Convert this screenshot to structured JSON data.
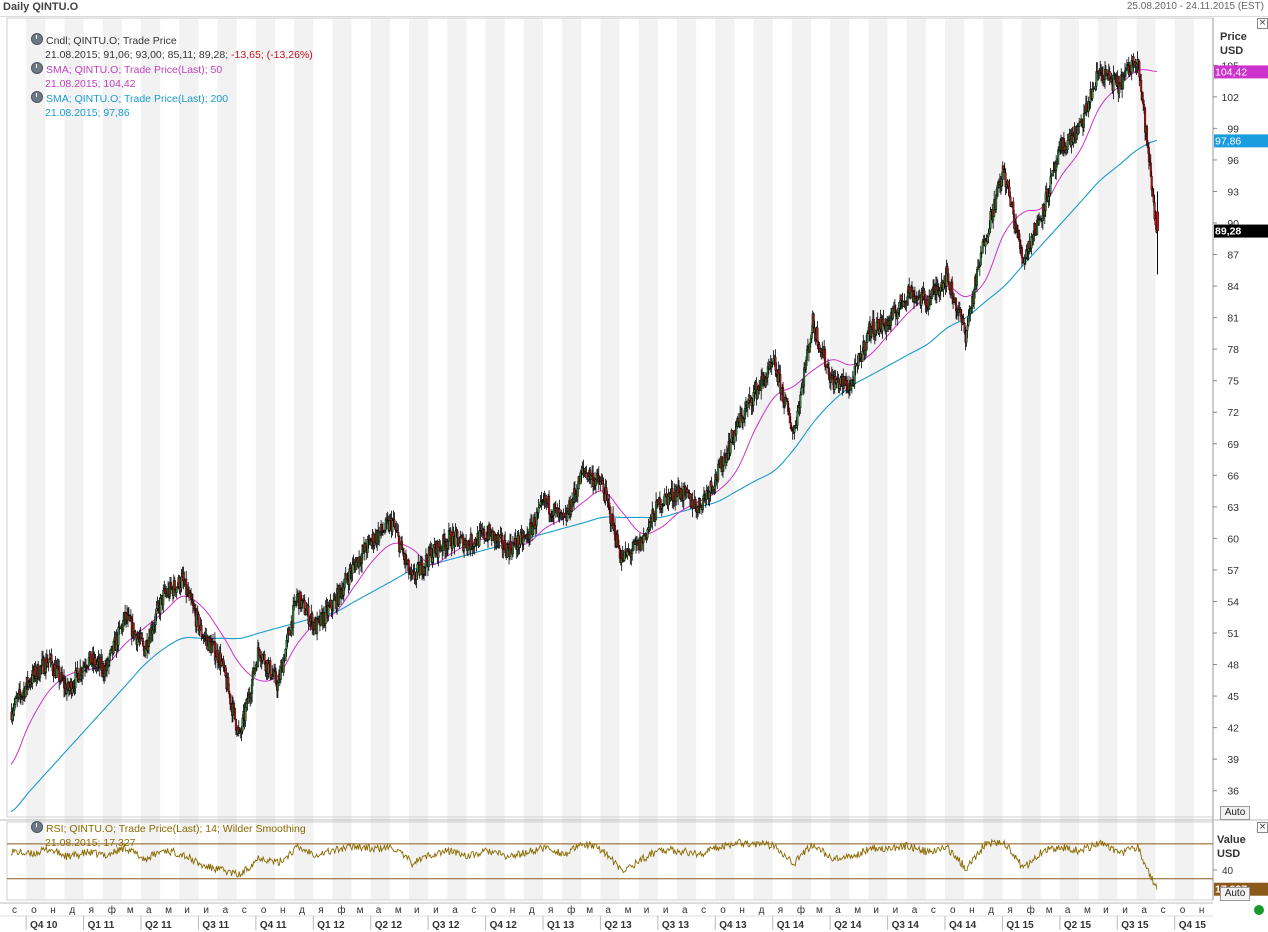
{
  "header": {
    "title": "Daily QINTU.O",
    "range": "25.08.2010 - 24.11.2015 (EST)"
  },
  "price_panel": {
    "axis_head": [
      "Price",
      "USD"
    ],
    "auto_label": "Auto",
    "legend": [
      {
        "text": "Cndl; QINTU.O; Trade Price",
        "color": "#222222"
      },
      {
        "text": "21.08.2015; 91,06; 93,00; 85,11; 89,28;",
        "color": "#222222",
        "extra": " -13,65; (-13,26%)",
        "extra_color": "#c0101a"
      },
      {
        "text": "SMA; QINTU.O; Trade Price(Last);  50",
        "color": "#c040c0"
      },
      {
        "text": "21.08.2015; 104,42",
        "color": "#c040c0"
      },
      {
        "text": "SMA; QINTU.O; Trade Price(Last);  200",
        "color": "#1a9ccc"
      },
      {
        "text": "21.08.2015; 97,86",
        "color": "#1a9ccc"
      }
    ],
    "markers": [
      {
        "value": 104.42,
        "label": "104,42",
        "bg": "#cc33cc",
        "fg": "#ffffff"
      },
      {
        "value": 97.86,
        "label": "97,86",
        "bg": "#1a9ce0",
        "fg": "#ffffff"
      },
      {
        "value": 89.28,
        "label": "89,28",
        "bg": "#000000",
        "fg": "#ffffff"
      }
    ]
  },
  "rsi_panel": {
    "axis_head": [
      "Value",
      "USD"
    ],
    "auto_label": "Auto",
    "legend": [
      {
        "text": "RSI; QINTU.O; Trade Price(Last);  14; Wilder Smoothing",
        "color": "#8a6a00"
      },
      {
        "text": "21.08.2015; 17,327",
        "color": "#8a6a00"
      }
    ],
    "tick_label": "40",
    "tick_value": 40,
    "upper_band": 70,
    "lower_band": 30,
    "marker": {
      "value": 17.327,
      "label": "17,327",
      "bg": "#8b5a1a",
      "fg": "#ffffff"
    }
  },
  "chart_data": {
    "type": "line",
    "title": "Daily QINTU.O",
    "ylabel": "Price USD",
    "ylim": [
      33.5,
      109.5
    ],
    "y_ticks": [
      36,
      39,
      42,
      45,
      48,
      51,
      54,
      57,
      60,
      63,
      66,
      69,
      72,
      75,
      78,
      81,
      84,
      87,
      90,
      93,
      96,
      99,
      102,
      105
    ],
    "month_labels": [
      "с",
      "о",
      "н",
      "д",
      "я",
      "ф",
      "м",
      "а",
      "м",
      "и",
      "и",
      "а",
      "с",
      "о",
      "н",
      "д",
      "я",
      "ф",
      "м",
      "а",
      "м",
      "и",
      "и",
      "а",
      "с",
      "о",
      "н",
      "д",
      "я",
      "ф",
      "м",
      "а",
      "м",
      "и",
      "и",
      "а",
      "с",
      "о",
      "н",
      "д",
      "я",
      "ф",
      "м",
      "а",
      "м",
      "и",
      "и",
      "а",
      "с",
      "о",
      "н",
      "д",
      "я",
      "ф",
      "м",
      "а",
      "м",
      "и",
      "и",
      "а",
      "с",
      "о",
      "н"
    ],
    "quarter_labels": [
      "Q4 10",
      "Q1 11",
      "Q2 11",
      "Q3 11",
      "Q4 11",
      "Q1 12",
      "Q2 12",
      "Q3 12",
      "Q4 12",
      "Q1 13",
      "Q2 13",
      "Q3 13",
      "Q4 13",
      "Q1 14",
      "Q2 14",
      "Q3 14",
      "Q4 14",
      "Q1 15",
      "Q2 15",
      "Q3 15",
      "Q4 15"
    ],
    "series": [
      {
        "name": "Cndl; QINTU.O; Trade Price",
        "color": "#000000",
        "x": [
          "2010-08",
          "2010-09",
          "2010-10",
          "2010-11",
          "2010-12",
          "2011-01",
          "2011-02",
          "2011-03",
          "2011-04",
          "2011-05",
          "2011-06",
          "2011-07",
          "2011-08",
          "2011-09",
          "2011-10",
          "2011-11",
          "2011-12",
          "2012-01",
          "2012-02",
          "2012-03",
          "2012-04",
          "2012-05",
          "2012-06",
          "2012-07",
          "2012-08",
          "2012-09",
          "2012-10",
          "2012-11",
          "2012-12",
          "2013-01",
          "2013-02",
          "2013-03",
          "2013-04",
          "2013-05",
          "2013-06",
          "2013-07",
          "2013-08",
          "2013-09",
          "2013-10",
          "2013-11",
          "2013-12",
          "2014-01",
          "2014-02",
          "2014-03",
          "2014-04",
          "2014-05",
          "2014-06",
          "2014-07",
          "2014-08",
          "2014-09",
          "2014-10",
          "2014-11",
          "2014-12",
          "2015-01",
          "2015-02",
          "2015-03",
          "2015-04",
          "2015-05",
          "2015-06",
          "2015-07",
          "2015-08"
        ],
        "values": [
          43.5,
          46.5,
          48.5,
          45.5,
          48.5,
          47.5,
          52.5,
          49.5,
          54.5,
          56.0,
          51.0,
          48.5,
          41.0,
          49.5,
          46.0,
          54.5,
          51.5,
          54.0,
          57.5,
          60.0,
          61.5,
          56.0,
          58.5,
          60.0,
          59.5,
          60.5,
          59.0,
          60.0,
          63.5,
          61.5,
          66.5,
          65.0,
          58.0,
          59.5,
          63.5,
          64.5,
          63.0,
          66.0,
          70.5,
          74.0,
          76.5,
          70.0,
          80.5,
          75.0,
          74.5,
          80.0,
          80.5,
          83.5,
          82.5,
          85.0,
          79.5,
          88.5,
          95.0,
          86.5,
          91.0,
          97.0,
          99.0,
          104.5,
          103.0,
          106.0,
          89.28
        ]
      },
      {
        "name": "SMA; QINTU.O; Trade Price(Last);  50",
        "color": "#cc33cc",
        "x": [
          "2010-08",
          "2010-09",
          "2010-10",
          "2010-11",
          "2010-12",
          "2011-01",
          "2011-02",
          "2011-03",
          "2011-04",
          "2011-05",
          "2011-06",
          "2011-07",
          "2011-08",
          "2011-09",
          "2011-10",
          "2011-11",
          "2011-12",
          "2012-01",
          "2012-02",
          "2012-03",
          "2012-04",
          "2012-05",
          "2012-06",
          "2012-07",
          "2012-08",
          "2012-09",
          "2012-10",
          "2012-11",
          "2012-12",
          "2013-01",
          "2013-02",
          "2013-03",
          "2013-04",
          "2013-05",
          "2013-06",
          "2013-07",
          "2013-08",
          "2013-09",
          "2013-10",
          "2013-11",
          "2013-12",
          "2014-01",
          "2014-02",
          "2014-03",
          "2014-04",
          "2014-05",
          "2014-06",
          "2014-07",
          "2014-08",
          "2014-09",
          "2014-10",
          "2014-11",
          "2014-12",
          "2015-01",
          "2015-02",
          "2015-03",
          "2015-04",
          "2015-05",
          "2015-06",
          "2015-07",
          "2015-08"
        ],
        "values": [
          38.5,
          42.5,
          45.5,
          47.0,
          47.5,
          48.0,
          50.0,
          51.5,
          53.0,
          54.5,
          53.5,
          51.0,
          48.0,
          46.5,
          47.0,
          50.0,
          52.0,
          53.0,
          55.5,
          58.0,
          59.5,
          59.0,
          57.5,
          58.5,
          59.5,
          60.0,
          59.5,
          59.5,
          61.0,
          62.0,
          63.5,
          64.5,
          62.5,
          60.5,
          61.0,
          62.5,
          63.5,
          64.5,
          66.5,
          70.5,
          73.5,
          74.5,
          76.0,
          77.0,
          76.5,
          77.5,
          79.5,
          81.5,
          83.0,
          84.0,
          83.0,
          84.5,
          89.0,
          91.0,
          91.5,
          94.5,
          97.0,
          101.0,
          103.0,
          104.5,
          104.42
        ]
      },
      {
        "name": "SMA; QINTU.O; Trade Price(Last);  200",
        "color": "#1a9ccc",
        "x": [
          "2010-08",
          "2010-09",
          "2010-10",
          "2010-11",
          "2010-12",
          "2011-01",
          "2011-02",
          "2011-03",
          "2011-04",
          "2011-05",
          "2011-06",
          "2011-07",
          "2011-08",
          "2011-09",
          "2011-10",
          "2011-11",
          "2011-12",
          "2012-01",
          "2012-02",
          "2012-03",
          "2012-04",
          "2012-05",
          "2012-06",
          "2012-07",
          "2012-08",
          "2012-09",
          "2012-10",
          "2012-11",
          "2012-12",
          "2013-01",
          "2013-02",
          "2013-03",
          "2013-04",
          "2013-05",
          "2013-06",
          "2013-07",
          "2013-08",
          "2013-09",
          "2013-10",
          "2013-11",
          "2013-12",
          "2014-01",
          "2014-02",
          "2014-03",
          "2014-04",
          "2014-05",
          "2014-06",
          "2014-07",
          "2014-08",
          "2014-09",
          "2014-10",
          "2014-11",
          "2014-12",
          "2015-01",
          "2015-02",
          "2015-03",
          "2015-04",
          "2015-05",
          "2015-06",
          "2015-07",
          "2015-08"
        ],
        "values": [
          34.0,
          36.0,
          38.0,
          40.0,
          42.0,
          44.0,
          46.0,
          48.0,
          49.5,
          50.5,
          50.5,
          50.5,
          50.5,
          51.0,
          51.5,
          52.0,
          52.5,
          53.0,
          54.0,
          55.0,
          56.0,
          57.0,
          57.5,
          58.0,
          58.5,
          59.0,
          59.5,
          60.0,
          60.5,
          61.0,
          61.5,
          62.0,
          62.0,
          62.0,
          62.0,
          62.5,
          63.0,
          63.5,
          64.5,
          65.5,
          66.5,
          68.5,
          71.0,
          73.0,
          74.5,
          75.5,
          76.5,
          77.5,
          78.5,
          80.0,
          81.0,
          82.5,
          84.0,
          86.0,
          88.0,
          90.0,
          92.0,
          94.0,
          95.5,
          97.0,
          97.86
        ]
      }
    ],
    "rsi_series": {
      "name": "RSI; QINTU.O; Trade Price(Last);  14; Wilder Smoothing",
      "color": "#8a6a00",
      "values": [
        62,
        58,
        64,
        55,
        60,
        57,
        66,
        52,
        63,
        58,
        45,
        40,
        34,
        55,
        48,
        66,
        58,
        63,
        68,
        64,
        66,
        48,
        58,
        62,
        56,
        62,
        55,
        60,
        66,
        58,
        70,
        63,
        38,
        52,
        64,
        62,
        58,
        66,
        72,
        70,
        68,
        48,
        70,
        52,
        54,
        66,
        64,
        68,
        60,
        66,
        42,
        70,
        72,
        42,
        62,
        66,
        62,
        72,
        58,
        66,
        17.327
      ]
    }
  }
}
